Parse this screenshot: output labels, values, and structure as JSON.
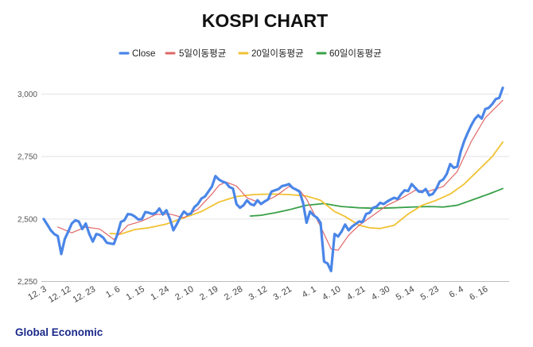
{
  "footer": {
    "brand": "Global Economic"
  },
  "chart_data": {
    "type": "line",
    "title": "KOSPI CHART",
    "xlabel": "",
    "ylabel": "",
    "ylim": [
      2250,
      3050
    ],
    "yticks": [
      2250,
      2500,
      2750,
      3000
    ],
    "ytick_labels": [
      "2,250",
      "2,500",
      "2,750",
      "3,000"
    ],
    "grid": "horizontal",
    "legend_position": "top",
    "x_tick_labels": [
      "12. 3",
      "12. 12",
      "12. 23",
      "1. 6",
      "1. 15",
      "1. 24",
      "2. 10",
      "2. 19",
      "2. 28",
      "3. 12",
      "3. 21",
      "4. 1",
      "4. 10",
      "4. 21",
      "4. 30",
      "5. 14",
      "5. 23",
      "6. 4",
      "6. 16"
    ],
    "x_tick_index": [
      0,
      7,
      14,
      21,
      28,
      35,
      42,
      49,
      56,
      63,
      70,
      77,
      84,
      91,
      98,
      105,
      112,
      119,
      126
    ],
    "n_points": 132,
    "series": [
      {
        "name": "Close",
        "color": "#4a86e8",
        "width": 3.2,
        "start_index": 0,
        "anchors": [
          [
            0,
            2500
          ],
          [
            1,
            2478
          ],
          [
            2,
            2455
          ],
          [
            3,
            2440
          ],
          [
            4,
            2432
          ],
          [
            5,
            2360
          ],
          [
            6,
            2420
          ],
          [
            7,
            2450
          ],
          [
            8,
            2482
          ],
          [
            9,
            2495
          ],
          [
            10,
            2490
          ],
          [
            11,
            2460
          ],
          [
            12,
            2482
          ],
          [
            13,
            2440
          ],
          [
            14,
            2410
          ],
          [
            15,
            2440
          ],
          [
            16,
            2436
          ],
          [
            17,
            2425
          ],
          [
            18,
            2405
          ],
          [
            19,
            2402
          ],
          [
            20,
            2400
          ],
          [
            21,
            2438
          ],
          [
            22,
            2488
          ],
          [
            23,
            2495
          ],
          [
            24,
            2520
          ],
          [
            25,
            2518
          ],
          [
            26,
            2510
          ],
          [
            27,
            2498
          ],
          [
            28,
            2500
          ],
          [
            29,
            2528
          ],
          [
            30,
            2525
          ],
          [
            31,
            2520
          ],
          [
            32,
            2525
          ],
          [
            33,
            2542
          ],
          [
            34,
            2518
          ],
          [
            35,
            2535
          ],
          [
            36,
            2500
          ],
          [
            37,
            2455
          ],
          [
            38,
            2480
          ],
          [
            39,
            2508
          ],
          [
            40,
            2530
          ],
          [
            41,
            2518
          ],
          [
            42,
            2522
          ],
          [
            43,
            2548
          ],
          [
            44,
            2560
          ],
          [
            45,
            2582
          ],
          [
            46,
            2590
          ],
          [
            47,
            2610
          ],
          [
            48,
            2630
          ],
          [
            49,
            2672
          ],
          [
            50,
            2658
          ],
          [
            51,
            2650
          ],
          [
            52,
            2645
          ],
          [
            53,
            2628
          ],
          [
            54,
            2622
          ],
          [
            55,
            2560
          ],
          [
            56,
            2545
          ],
          [
            57,
            2555
          ],
          [
            58,
            2575
          ],
          [
            59,
            2560
          ],
          [
            60,
            2555
          ],
          [
            61,
            2575
          ],
          [
            62,
            2560
          ],
          [
            63,
            2570
          ],
          [
            64,
            2578
          ],
          [
            65,
            2610
          ],
          [
            66,
            2615
          ],
          [
            67,
            2620
          ],
          [
            68,
            2632
          ],
          [
            69,
            2635
          ],
          [
            70,
            2640
          ],
          [
            71,
            2625
          ],
          [
            72,
            2618
          ],
          [
            73,
            2610
          ],
          [
            74,
            2565
          ],
          [
            75,
            2485
          ],
          [
            76,
            2530
          ],
          [
            77,
            2515
          ],
          [
            78,
            2505
          ],
          [
            79,
            2485
          ],
          [
            80,
            2330
          ],
          [
            81,
            2322
          ],
          [
            82,
            2292
          ],
          [
            83,
            2440
          ],
          [
            84,
            2430
          ],
          [
            85,
            2450
          ],
          [
            86,
            2478
          ],
          [
            87,
            2455
          ],
          [
            88,
            2470
          ],
          [
            89,
            2480
          ],
          [
            90,
            2490
          ],
          [
            91,
            2488
          ],
          [
            92,
            2520
          ],
          [
            93,
            2525
          ],
          [
            94,
            2545
          ],
          [
            95,
            2550
          ],
          [
            96,
            2565
          ],
          [
            97,
            2560
          ],
          [
            98,
            2570
          ],
          [
            99,
            2578
          ],
          [
            100,
            2585
          ],
          [
            101,
            2580
          ],
          [
            102,
            2600
          ],
          [
            103,
            2615
          ],
          [
            104,
            2612
          ],
          [
            105,
            2640
          ],
          [
            106,
            2625
          ],
          [
            107,
            2610
          ],
          [
            108,
            2608
          ],
          [
            109,
            2620
          ],
          [
            110,
            2595
          ],
          [
            111,
            2600
          ],
          [
            112,
            2620
          ],
          [
            113,
            2650
          ],
          [
            114,
            2658
          ],
          [
            115,
            2680
          ],
          [
            116,
            2720
          ],
          [
            117,
            2705
          ],
          [
            118,
            2710
          ],
          [
            119,
            2770
          ],
          [
            120,
            2812
          ],
          [
            121,
            2845
          ],
          [
            122,
            2875
          ],
          [
            123,
            2900
          ],
          [
            124,
            2915
          ],
          [
            125,
            2902
          ],
          [
            126,
            2940
          ],
          [
            127,
            2945
          ],
          [
            128,
            2960
          ],
          [
            129,
            2980
          ],
          [
            130,
            2985
          ],
          [
            131,
            3025
          ]
        ]
      },
      {
        "name": "5일이동평균",
        "color": "#e06666",
        "width": 1.2,
        "start_index": 4,
        "anchors": [
          [
            4,
            2468
          ],
          [
            8,
            2445
          ],
          [
            12,
            2468
          ],
          [
            16,
            2460
          ],
          [
            20,
            2418
          ],
          [
            24,
            2475
          ],
          [
            28,
            2492
          ],
          [
            32,
            2518
          ],
          [
            36,
            2520
          ],
          [
            40,
            2505
          ],
          [
            44,
            2540
          ],
          [
            48,
            2600
          ],
          [
            50,
            2635
          ],
          [
            52,
            2648
          ],
          [
            55,
            2632
          ],
          [
            58,
            2585
          ],
          [
            62,
            2563
          ],
          [
            66,
            2590
          ],
          [
            70,
            2630
          ],
          [
            73,
            2615
          ],
          [
            75,
            2580
          ],
          [
            79,
            2470
          ],
          [
            82,
            2380
          ],
          [
            84,
            2375
          ],
          [
            87,
            2435
          ],
          [
            90,
            2475
          ],
          [
            94,
            2515
          ],
          [
            98,
            2555
          ],
          [
            102,
            2582
          ],
          [
            106,
            2615
          ],
          [
            110,
            2612
          ],
          [
            114,
            2630
          ],
          [
            118,
            2690
          ],
          [
            122,
            2810
          ],
          [
            126,
            2905
          ],
          [
            131,
            2975
          ]
        ]
      },
      {
        "name": "20일이동평균",
        "color": "#f1c232",
        "width": 1.8,
        "start_index": 19,
        "anchors": [
          [
            19,
            2442
          ],
          [
            22,
            2440
          ],
          [
            26,
            2458
          ],
          [
            30,
            2465
          ],
          [
            35,
            2480
          ],
          [
            40,
            2505
          ],
          [
            45,
            2530
          ],
          [
            50,
            2568
          ],
          [
            55,
            2590
          ],
          [
            60,
            2598
          ],
          [
            65,
            2600
          ],
          [
            70,
            2598
          ],
          [
            75,
            2592
          ],
          [
            79,
            2575
          ],
          [
            83,
            2530
          ],
          [
            86,
            2510
          ],
          [
            90,
            2475
          ],
          [
            93,
            2465
          ],
          [
            96,
            2462
          ],
          [
            100,
            2475
          ],
          [
            104,
            2520
          ],
          [
            108,
            2555
          ],
          [
            112,
            2575
          ],
          [
            116,
            2600
          ],
          [
            120,
            2640
          ],
          [
            124,
            2695
          ],
          [
            128,
            2750
          ],
          [
            131,
            2808
          ]
        ]
      },
      {
        "name": "60일이동평균",
        "color": "#38a047",
        "width": 1.8,
        "start_index": 59,
        "anchors": [
          [
            59,
            2512
          ],
          [
            62,
            2515
          ],
          [
            66,
            2525
          ],
          [
            70,
            2537
          ],
          [
            75,
            2555
          ],
          [
            80,
            2562
          ],
          [
            85,
            2550
          ],
          [
            90,
            2545
          ],
          [
            95,
            2543
          ],
          [
            100,
            2545
          ],
          [
            105,
            2548
          ],
          [
            110,
            2550
          ],
          [
            114,
            2548
          ],
          [
            118,
            2555
          ],
          [
            122,
            2575
          ],
          [
            127,
            2600
          ],
          [
            131,
            2622
          ]
        ]
      }
    ]
  }
}
